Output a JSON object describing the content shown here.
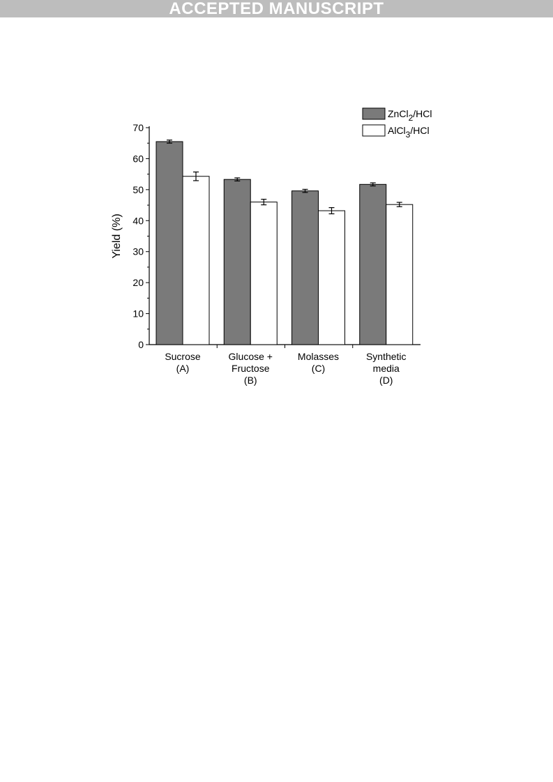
{
  "banner": {
    "text": "ACCEPTED MANUSCRIPT"
  },
  "colors": {
    "zncl2": "#7a7a7a",
    "alcl3": "#ffffff",
    "axis": "#000000",
    "banner": "#bdbdbd"
  },
  "chart_data": {
    "type": "bar",
    "categories": [
      [
        "Sucrose",
        "(A)"
      ],
      [
        "Glucose +",
        "Fructose",
        "(B)"
      ],
      [
        "Molasses",
        "(C)"
      ],
      [
        "Synthetic",
        "media",
        "(D)"
      ]
    ],
    "series": [
      {
        "name": "ZnCl2/HCl",
        "legend_main": "ZnCl",
        "legend_sub": "2",
        "legend_tail": "/HCl",
        "values": [
          65.5,
          53.3,
          49.6,
          51.7
        ],
        "errors": [
          0.5,
          0.5,
          0.5,
          0.5
        ]
      },
      {
        "name": "AlCl3/HCl",
        "legend_main": "AlCl",
        "legend_sub": "3",
        "legend_tail": "/HCl",
        "values": [
          54.3,
          46.0,
          43.2,
          45.2
        ],
        "errors": [
          1.4,
          0.9,
          1.0,
          0.7
        ]
      }
    ],
    "xlabel": "",
    "ylabel": "Yield (%)",
    "ylim": [
      0,
      70
    ],
    "yticks": [
      0,
      10,
      20,
      30,
      40,
      50,
      60,
      70
    ],
    "grid": false,
    "legend_position": "top-right"
  }
}
